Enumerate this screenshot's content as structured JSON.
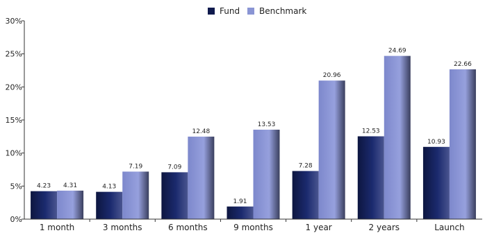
{
  "chart_data": {
    "type": "bar",
    "title": "",
    "xlabel": "",
    "ylabel": "",
    "categories": [
      "1 month",
      "3 months",
      "6 months",
      "9 months",
      "1 year",
      "2 years",
      "Launch"
    ],
    "series": [
      {
        "name": "Fund",
        "values": [
          4.23,
          4.13,
          7.09,
          1.91,
          7.28,
          12.53,
          10.93
        ],
        "color": "#0f1a4d"
      },
      {
        "name": "Benchmark",
        "values": [
          4.31,
          7.19,
          12.48,
          13.53,
          20.96,
          24.69,
          22.66
        ],
        "color": "#8a95d4"
      }
    ],
    "yticks": [
      "0%",
      "5%",
      "10%",
      "15%",
      "20%",
      "25%",
      "30%"
    ],
    "ylim": [
      0,
      30
    ],
    "legend": "top-center",
    "grid": false
  }
}
